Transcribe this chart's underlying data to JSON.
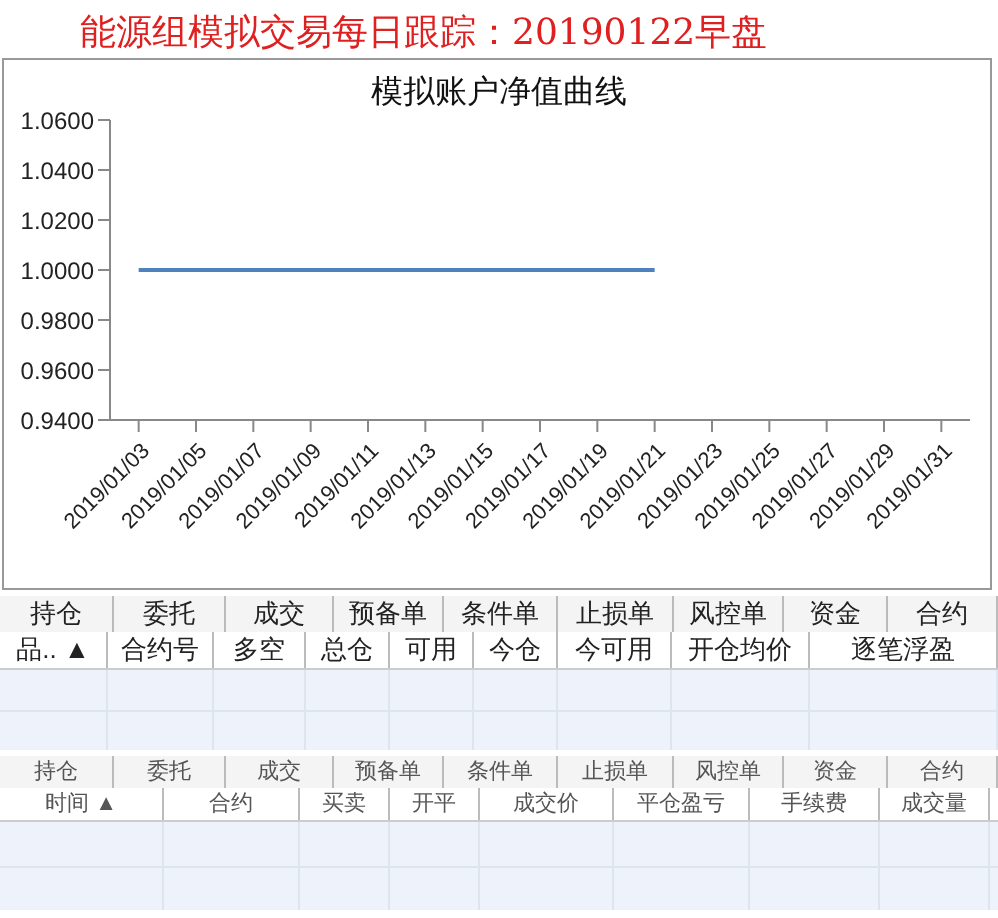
{
  "chart_data": [
    {
      "type": "line",
      "title": "模拟账户净值曲线",
      "annotations": [
        "能源组模拟交易每日跟踪：20190122早盘"
      ],
      "x": [
        "2019-01-03",
        "2019-01-04",
        "2019-01-07",
        "2019-01-08",
        "2019-01-09",
        "2019-01-10",
        "2019-01-11",
        "2019-01-14",
        "2019-01-15",
        "2019-01-16",
        "2019-01-17",
        "2019-01-18",
        "2019-01-21"
      ],
      "series": [
        {
          "color": "#4f81bd",
          "values": [
            1,
            1,
            1,
            1,
            1,
            1,
            1,
            1,
            1,
            1,
            1,
            1,
            1
          ]
        }
      ],
      "xlim": [
        "2019-01-02",
        "2019-02-01"
      ],
      "xticks": [
        {
          "value": "2019-01-03",
          "label": "2019/01/03"
        },
        {
          "value": "2019-01-05",
          "label": "2019/01/05"
        },
        {
          "value": "2019-01-07",
          "label": "2019/01/07"
        },
        {
          "value": "2019-01-09",
          "label": "2019/01/09"
        },
        {
          "value": "2019-01-11",
          "label": "2019/01/11"
        },
        {
          "value": "2019-01-13",
          "label": "2019/01/13"
        },
        {
          "value": "2019-01-15",
          "label": "2019/01/15"
        },
        {
          "value": "2019-01-17",
          "label": "2019/01/17"
        },
        {
          "value": "2019-01-19",
          "label": "2019/01/19"
        },
        {
          "value": "2019-01-21",
          "label": "2019/01/21"
        },
        {
          "value": "2019-01-23",
          "label": "2019/01/23"
        },
        {
          "value": "2019-01-25",
          "label": "2019/01/25"
        },
        {
          "value": "2019-01-27",
          "label": "2019/01/27"
        },
        {
          "value": "2019-01-29",
          "label": "2019/01/29"
        },
        {
          "value": "2019-01-31",
          "label": "2019/01/31"
        }
      ],
      "ylim": [
        0.94,
        1.06
      ],
      "yticks": [
        {
          "value": 0.94,
          "label": "0.9400"
        },
        {
          "value": 0.96,
          "label": "0.9600"
        },
        {
          "value": 0.98,
          "label": "0.9800"
        },
        {
          "value": 1.0,
          "label": "1.0000"
        },
        {
          "value": 1.02,
          "label": "1.0200"
        },
        {
          "value": 1.04,
          "label": "1.0400"
        },
        {
          "value": 1.06,
          "label": "1.0600"
        }
      ],
      "marker": "none",
      "line_style": "solid",
      "grid": false,
      "legend": false
    },
    {
      "type": "other",
      "annotations": [
        "持仓",
        "委托",
        "成交",
        "预备单",
        "条件单",
        "止损单",
        "风控单",
        "资金",
        "合约",
        "品.. ▲",
        "合约号",
        "多空",
        "总仓",
        "可用",
        "今仓",
        "今可用",
        "开仓均价",
        "逐笔浮盈",
        "持仓",
        "委托",
        "成交",
        "预备单",
        "条件单",
        "止损单",
        "风控单",
        "资金",
        "合约",
        "时间 ▲",
        "合约",
        "买卖",
        "开平",
        "成交价",
        "平仓盈亏",
        "手续费",
        "成交量"
      ]
    }
  ]
}
